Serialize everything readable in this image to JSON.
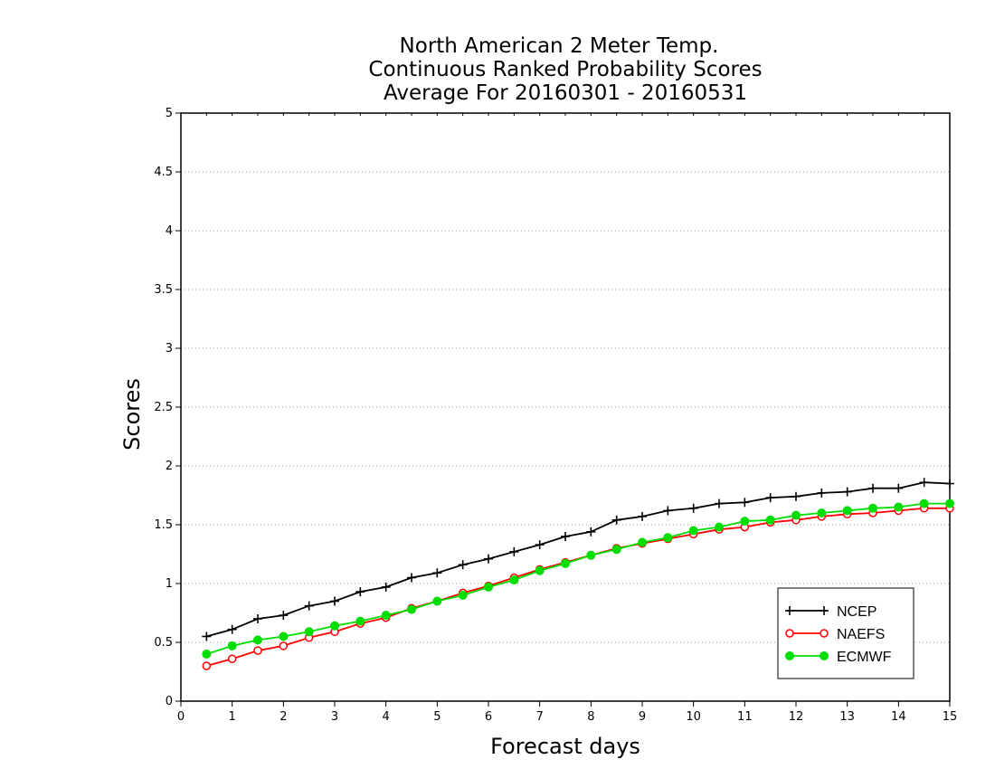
{
  "chart_data": {
    "type": "line",
    "title_lines": [
      "North American 2 Meter Temp.",
      "Continuous Ranked Probability Scores",
      "Average For 20160301 - 20160531"
    ],
    "xlabel": "Forecast days",
    "ylabel": "Scores",
    "xlim": [
      0,
      15
    ],
    "ylim": [
      0,
      5
    ],
    "x_ticks": [
      "0",
      "1",
      "2",
      "3",
      "4",
      "5",
      "6",
      "7",
      "8",
      "9",
      "10",
      "11",
      "12",
      "13",
      "14",
      "15"
    ],
    "y_ticks": [
      "0",
      "0.5",
      "1",
      "1.5",
      "2",
      "2.5",
      "3",
      "3.5",
      "4",
      "4.5",
      "5"
    ],
    "grid": "horizontal dotted",
    "legend_position": "bottom-right",
    "x": [
      0.5,
      1,
      1.5,
      2,
      2.5,
      3,
      3.5,
      4,
      4.5,
      5,
      5.5,
      6,
      6.5,
      7,
      7.5,
      8,
      8.5,
      9,
      9.5,
      10,
      10.5,
      11,
      11.5,
      12,
      12.5,
      13,
      13.5,
      14,
      14.5,
      15
    ],
    "series": [
      {
        "name": "NCEP",
        "color": "#000000",
        "marker": "plus",
        "values": [
          0.55,
          0.61,
          0.7,
          0.73,
          0.81,
          0.85,
          0.93,
          0.97,
          1.05,
          1.09,
          1.16,
          1.21,
          1.27,
          1.33,
          1.4,
          1.44,
          1.54,
          1.57,
          1.62,
          1.64,
          1.68,
          1.69,
          1.73,
          1.74,
          1.77,
          1.78,
          1.81,
          1.81,
          1.86,
          1.85
        ]
      },
      {
        "name": "NAEFS",
        "color": "#ff0000",
        "marker": "open-circle",
        "values": [
          0.3,
          0.36,
          0.43,
          0.47,
          0.54,
          0.59,
          0.66,
          0.71,
          0.79,
          0.85,
          0.92,
          0.98,
          1.05,
          1.12,
          1.18,
          1.24,
          1.3,
          1.34,
          1.38,
          1.42,
          1.46,
          1.48,
          1.52,
          1.54,
          1.57,
          1.59,
          1.6,
          1.62,
          1.64,
          1.64
        ]
      },
      {
        "name": "ECMWF",
        "color": "#00dd00",
        "marker": "filled-circle",
        "values": [
          0.4,
          0.47,
          0.52,
          0.55,
          0.59,
          0.64,
          0.68,
          0.73,
          0.78,
          0.85,
          0.9,
          0.97,
          1.03,
          1.11,
          1.17,
          1.24,
          1.29,
          1.35,
          1.39,
          1.45,
          1.48,
          1.53,
          1.54,
          1.58,
          1.6,
          1.62,
          1.64,
          1.65,
          1.68,
          1.68
        ]
      }
    ]
  }
}
